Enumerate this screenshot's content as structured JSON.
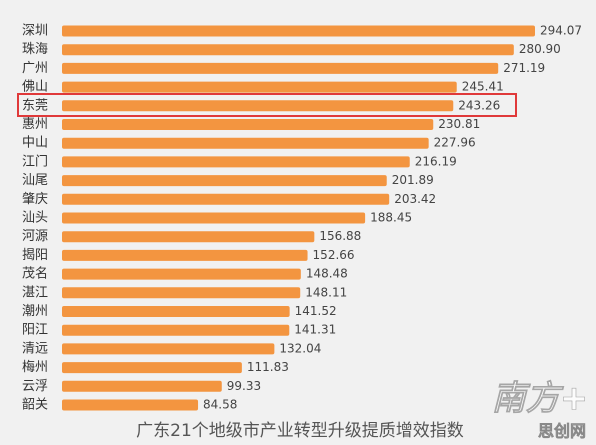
{
  "chart_data": {
    "type": "bar",
    "orientation": "horizontal",
    "title": "广东21个地级市产业转型升级提质增效指数",
    "categories": [
      "深圳",
      "珠海",
      "广州",
      "佛山",
      "东莞",
      "惠州",
      "中山",
      "江门",
      "汕尾",
      "肇庆",
      "汕头",
      "河源",
      "揭阳",
      "茂名",
      "湛江",
      "潮州",
      "阳江",
      "清远",
      "梅州",
      "云浮",
      "韶关"
    ],
    "values": [
      294.07,
      280.9,
      271.19,
      245.41,
      243.26,
      230.81,
      227.96,
      216.19,
      201.89,
      203.42,
      188.45,
      156.88,
      152.66,
      148.48,
      148.11,
      141.52,
      141.31,
      132.04,
      111.83,
      99.33,
      84.58
    ],
    "value_labels": [
      "294.07",
      "280.90",
      "271.19",
      "245.41",
      "243.26",
      "230.81",
      "227.96",
      "216.19",
      "201.89",
      "203.42",
      "188.45",
      "156.88",
      "152.66",
      "148.48",
      "148.11",
      "141.52",
      "141.31",
      "132.04",
      "111.83",
      "99.33",
      "84.58"
    ],
    "color": "#f39540",
    "watermark": "南方+",
    "site_watermark": "思创网"
  }
}
